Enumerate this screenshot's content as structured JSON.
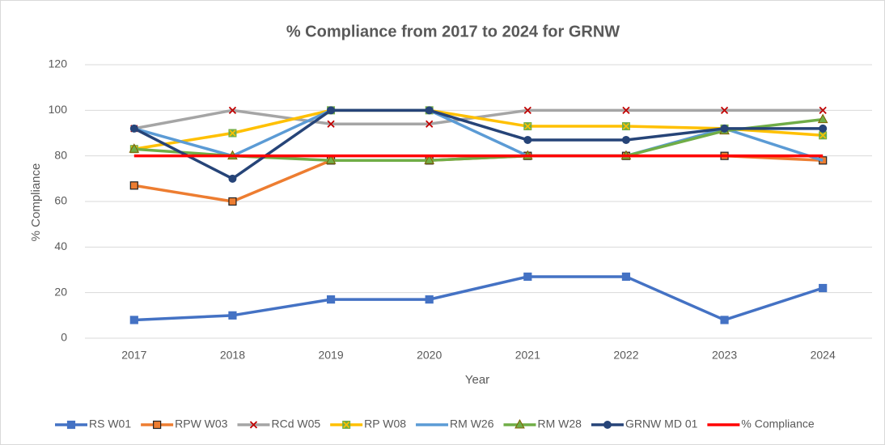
{
  "chart_data": {
    "type": "line",
    "title": "% Compliance from 2017 to 2024 for GRNW",
    "x_label": "Year",
    "y_label": "% Compliance",
    "categories": [
      "2017",
      "2018",
      "2019",
      "2020",
      "2021",
      "2022",
      "2023",
      "2024"
    ],
    "ylim": [
      0,
      120
    ],
    "yticks": [
      0,
      20,
      40,
      60,
      80,
      100,
      120
    ],
    "grid": true,
    "legend": "bottom",
    "series": [
      {
        "name": "RS W01",
        "color": "#4472c4",
        "marker": "square",
        "marker_color": "#4472c4",
        "values": [
          8,
          10,
          17,
          17,
          27,
          27,
          8,
          22
        ]
      },
      {
        "name": "RPW W03",
        "color": "#ed7d31",
        "marker": "square",
        "marker_color": "#ed7d31",
        "values": [
          67,
          60,
          78,
          78,
          80,
          80,
          80,
          78
        ]
      },
      {
        "name": "RCd W05",
        "color": "#a5a5a5",
        "marker": "x",
        "marker_color": "#c00000",
        "values": [
          92,
          100,
          94,
          94,
          100,
          100,
          100,
          100
        ]
      },
      {
        "name": "RP W08",
        "color": "#ffc000",
        "marker": "xbox",
        "marker_color": "#70ad47",
        "values": [
          83,
          90,
          100,
          100,
          93,
          93,
          92,
          89
        ]
      },
      {
        "name": "RM W26",
        "color": "#5b9bd5",
        "marker": "none",
        "marker_color": "#5b9bd5",
        "values": [
          92,
          80,
          100,
          100,
          80,
          80,
          92,
          78
        ]
      },
      {
        "name": "RM W28",
        "color": "#70ad47",
        "marker": "triangle",
        "marker_color": "#70ad47",
        "values": [
          83,
          80,
          78,
          78,
          80,
          80,
          91,
          96
        ]
      },
      {
        "name": "GRNW MD 01",
        "color": "#264478",
        "marker": "circle",
        "marker_color": "#264478",
        "values": [
          92,
          70,
          100,
          100,
          87,
          87,
          92,
          92
        ]
      },
      {
        "name": "% Compliance",
        "color": "#ff0000",
        "marker": "none",
        "marker_color": "#ff0000",
        "values": [
          80,
          80,
          80,
          80,
          80,
          80,
          80,
          80
        ]
      }
    ]
  }
}
